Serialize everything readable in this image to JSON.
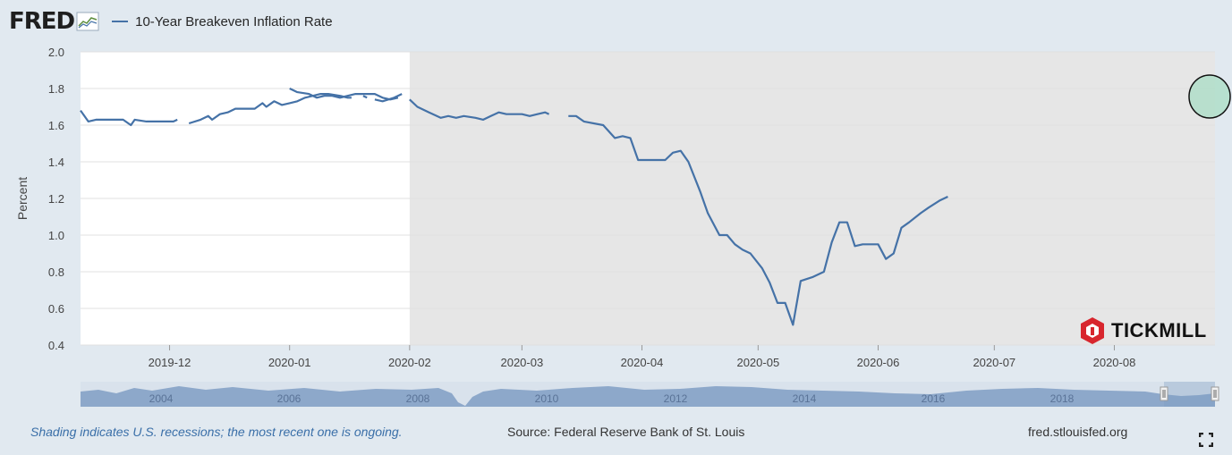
{
  "header": {
    "logo_text": "FRED",
    "legend_label": "10-Year Breakeven Inflation Rate"
  },
  "colors": {
    "series": "#4572a7",
    "recession_shade": "#e6e6e6",
    "plot_bg": "#ffffff",
    "page_bg": "#e1e9f0",
    "highlight_circle_fill": "#a8dcc4",
    "tickmill_red": "#d8262e"
  },
  "chart_data": {
    "type": "line",
    "ylabel": "Percent",
    "ylim": [
      0.4,
      2.0
    ],
    "yticks": [
      "0.4",
      "0.6",
      "0.8",
      "1.0",
      "1.2",
      "1.4",
      "1.6",
      "1.8",
      "2.0"
    ],
    "xlim": [
      "2019-11-08",
      "2020-08-27"
    ],
    "xticks": [
      "2019-12",
      "2020-01",
      "2020-02",
      "2020-03",
      "2020-04",
      "2020-05",
      "2020-06",
      "2020-07",
      "2020-08"
    ],
    "recession_start": "2020-02-01",
    "grid": "horizontal",
    "series": [
      {
        "name": "10-Year Breakeven Inflation Rate",
        "segments": [
          [
            [
              "2019-11-08",
              1.68
            ],
            [
              "2019-11-10",
              1.62
            ],
            [
              "2019-11-12",
              1.63
            ],
            [
              "2019-11-15",
              1.63
            ],
            [
              "2019-11-19",
              1.63
            ],
            [
              "2019-11-21",
              1.6
            ],
            [
              "2019-11-22",
              1.63
            ],
            [
              "2019-11-25",
              1.62
            ],
            [
              "2019-11-28",
              1.62
            ],
            [
              "2019-12-02",
              1.62
            ],
            [
              "2019-12-03",
              1.63
            ]
          ],
          [
            [
              "2019-12-06",
              1.61
            ],
            [
              "2019-12-09",
              1.63
            ],
            [
              "2019-12-11",
              1.65
            ],
            [
              "2019-12-12",
              1.63
            ],
            [
              "2019-12-14",
              1.66
            ],
            [
              "2019-12-16",
              1.67
            ],
            [
              "2019-12-18",
              1.69
            ],
            [
              "2019-12-20",
              1.69
            ],
            [
              "2019-12-23",
              1.69
            ],
            [
              "2019-12-25",
              1.72
            ],
            [
              "2019-12-26",
              1.7
            ],
            [
              "2019-12-28",
              1.73
            ],
            [
              "2019-12-30",
              1.71
            ],
            [
              "2020-01-01",
              1.72
            ],
            [
              "2020-01-03",
              1.73
            ],
            [
              "2020-01-05",
              1.75
            ],
            [
              "2020-01-07",
              1.76
            ],
            [
              "2020-01-09",
              1.77
            ],
            [
              "2020-01-11",
              1.77
            ],
            [
              "2020-01-14",
              1.76
            ],
            [
              "2020-01-16",
              1.75
            ],
            [
              "2020-01-17",
              1.75
            ]
          ],
          [
            [
              "2020-01-20",
              1.76
            ],
            [
              "2020-01-21",
              1.75
            ]
          ],
          [
            [
              "2020-01-23",
              1.74
            ],
            [
              "2020-01-25",
              1.73
            ],
            [
              "2020-01-28",
              1.75
            ],
            [
              "2020-01-30",
              1.77
            ]
          ],
          [
            [
              "2020-01-01",
              1.8
            ],
            [
              "2020-01-03",
              1.78
            ],
            [
              "2020-01-06",
              1.77
            ],
            [
              "2020-01-08",
              1.75
            ],
            [
              "2020-01-10",
              1.76
            ],
            [
              "2020-01-12",
              1.76
            ],
            [
              "2020-01-14",
              1.75
            ],
            [
              "2020-01-16",
              1.76
            ],
            [
              "2020-01-18",
              1.77
            ],
            [
              "2020-01-21",
              1.77
            ],
            [
              "2020-01-23",
              1.77
            ],
            [
              "2020-01-25",
              1.75
            ],
            [
              "2020-01-27",
              1.74
            ],
            [
              "2020-01-29",
              1.75
            ]
          ],
          [
            [
              "2020-02-01",
              1.74
            ],
            [
              "2020-02-03",
              1.7
            ],
            [
              "2020-02-06",
              1.67
            ],
            [
              "2020-02-09",
              1.64
            ],
            [
              "2020-02-11",
              1.65
            ],
            [
              "2020-02-13",
              1.64
            ],
            [
              "2020-02-15",
              1.65
            ],
            [
              "2020-02-18",
              1.64
            ],
            [
              "2020-02-20",
              1.63
            ],
            [
              "2020-02-22",
              1.65
            ],
            [
              "2020-02-24",
              1.67
            ],
            [
              "2020-02-26",
              1.66
            ],
            [
              "2020-03-01",
              1.66
            ],
            [
              "2020-03-03",
              1.65
            ],
            [
              "2020-03-05",
              1.66
            ],
            [
              "2020-03-07",
              1.67
            ],
            [
              "2020-03-08",
              1.66
            ]
          ],
          [
            [
              "2020-03-13",
              1.65
            ],
            [
              "2020-03-15",
              1.65
            ],
            [
              "2020-03-17",
              1.62
            ],
            [
              "2020-03-22",
              1.6
            ],
            [
              "2020-03-25",
              1.53
            ],
            [
              "2020-03-27",
              1.54
            ],
            [
              "2020-03-29",
              1.53
            ],
            [
              "2020-03-31",
              1.41
            ],
            [
              "2020-04-04",
              1.41
            ],
            [
              "2020-04-07",
              1.41
            ],
            [
              "2020-04-09",
              1.45
            ],
            [
              "2020-04-11",
              1.46
            ],
            [
              "2020-04-13",
              1.4
            ],
            [
              "2020-04-16",
              1.24
            ],
            [
              "2020-04-18",
              1.12
            ],
            [
              "2020-04-21",
              1.0
            ],
            [
              "2020-04-23",
              1.0
            ],
            [
              "2020-04-25",
              0.95
            ],
            [
              "2020-04-27",
              0.92
            ],
            [
              "2020-04-29",
              0.9
            ],
            [
              "2020-05-02",
              0.82
            ],
            [
              "2020-05-04",
              0.74
            ],
            [
              "2020-05-06",
              0.63
            ],
            [
              "2020-05-08",
              0.63
            ],
            [
              "2020-05-10",
              0.51
            ],
            [
              "2020-05-12",
              0.75
            ],
            [
              "2020-05-15",
              0.77
            ],
            [
              "2020-05-18",
              0.8
            ],
            [
              "2020-05-20",
              0.96
            ],
            [
              "2020-05-22",
              1.07
            ],
            [
              "2020-05-24",
              1.07
            ],
            [
              "2020-05-26",
              0.94
            ],
            [
              "2020-05-28",
              0.95
            ],
            [
              "2020-05-30",
              0.95
            ],
            [
              "2020-06-01",
              0.95
            ],
            [
              "2020-06-03",
              0.87
            ],
            [
              "2020-06-05",
              0.9
            ],
            [
              "2020-06-07",
              1.04
            ],
            [
              "2020-06-09",
              1.07
            ],
            [
              "2020-06-12",
              1.12
            ],
            [
              "2020-06-14",
              1.15
            ],
            [
              "2020-06-17",
              1.19
            ],
            [
              "2020-06-19",
              1.21
            ]
          ]
        ]
      }
    ]
  },
  "annotations": {
    "tickmill_logo_text": "TICKMILL"
  },
  "navigator": {
    "year_labels": [
      "2004",
      "2006",
      "2008",
      "2010",
      "2012",
      "2014",
      "2016",
      "2018"
    ]
  },
  "footer": {
    "recession_note": "Shading indicates U.S. recessions; the most recent one is ongoing.",
    "source": "Source: Federal Reserve Bank of St. Louis",
    "url": "fred.stlouisfed.org"
  },
  "icons": [
    "fred-sparkline-icon",
    "fullscreen-icon",
    "tickmill-logo-icon",
    "navigator-handle-icon"
  ]
}
